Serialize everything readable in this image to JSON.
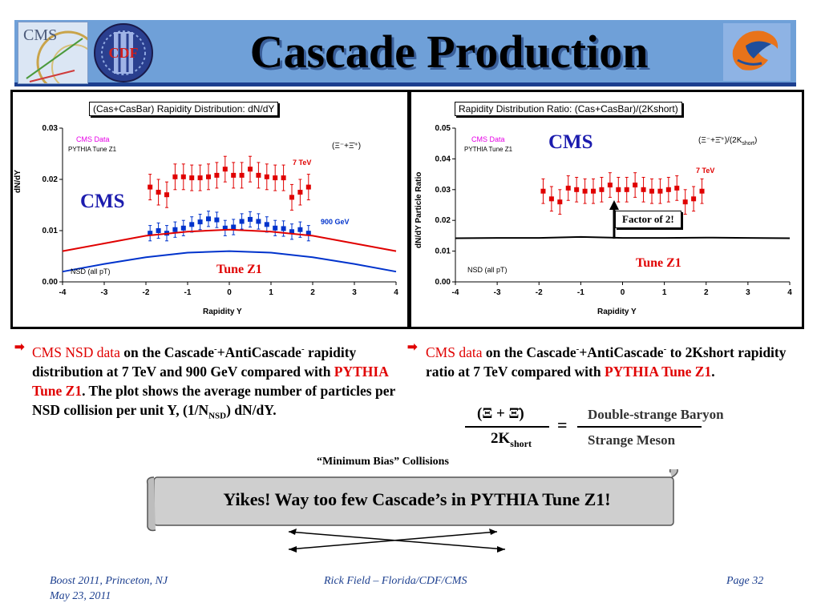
{
  "header": {
    "title": "Cascade Production",
    "logos": [
      "CMS",
      "CDF"
    ]
  },
  "left_plot": {
    "title": "(Cas+CasBar) Rapidity Distribution: dN/dY",
    "ylabel": "dN/dY",
    "xlabel": "Rapidity Y",
    "y_ticks": [
      "0.03",
      "0.02",
      "0.01",
      "0.00"
    ],
    "x_ticks": [
      "-4",
      "-3",
      "-2",
      "-1",
      "0",
      "1",
      "2",
      "3",
      "4"
    ],
    "legend_cms_data": "CMS Data",
    "legend_pythia": "PYTHIA Tune Z1",
    "formula": "(Ξ⁻+Ξ̄⁺)",
    "cms_label": "CMS",
    "label_7tev": "7 TeV",
    "label_900gev": "900 GeV",
    "tune_label": "Tune Z1",
    "nsd_label": "NSD (all pT)"
  },
  "right_plot": {
    "title": "Rapidity Distribution Ratio: (Cas+CasBar)/(2Kshort)",
    "ylabel": "dN/dY Particle Ratio",
    "xlabel": "Rapidity Y",
    "y_ticks": [
      "0.05",
      "0.04",
      "0.03",
      "0.02",
      "0.01",
      "0.00"
    ],
    "x_ticks": [
      "-4",
      "-3",
      "-2",
      "-1",
      "0",
      "1",
      "2",
      "3",
      "4"
    ],
    "legend_cms_data": "CMS Data",
    "legend_pythia": "PYTHIA Tune Z1",
    "formula_main": "(Ξ⁻+Ξ̄⁺)/(2K",
    "formula_sub": "short",
    "formula_end": ")",
    "cms_label": "CMS",
    "label_7tev": "7 TeV",
    "factor_label": "Factor of 2!",
    "tune_label": "Tune Z1",
    "nsd_label": "NSD (all pT)"
  },
  "chart_data": [
    {
      "type": "scatter",
      "title": "(Cas+CasBar) Rapidity Distribution: dN/dY",
      "xlabel": "Rapidity Y",
      "ylabel": "dN/dY",
      "xlim": [
        -4,
        4
      ],
      "ylim": [
        0,
        0.03
      ],
      "series": [
        {
          "name": "7 TeV",
          "color": "#e00000",
          "x": [
            -1.9,
            -1.7,
            -1.5,
            -1.3,
            -1.1,
            -0.9,
            -0.7,
            -0.5,
            -0.3,
            -0.1,
            0.1,
            0.3,
            0.5,
            0.7,
            0.9,
            1.1,
            1.3,
            1.5,
            1.7,
            1.9
          ],
          "y": [
            0.0185,
            0.0175,
            0.017,
            0.0205,
            0.0205,
            0.0203,
            0.0203,
            0.0205,
            0.0208,
            0.022,
            0.0208,
            0.0208,
            0.022,
            0.0208,
            0.0205,
            0.0203,
            0.0203,
            0.0165,
            0.0175,
            0.0185
          ],
          "err": [
            0.0025,
            0.0025,
            0.0025,
            0.0025,
            0.0025,
            0.0025,
            0.0025,
            0.0025,
            0.0025,
            0.0025,
            0.0025,
            0.0025,
            0.0025,
            0.0025,
            0.0025,
            0.0025,
            0.0025,
            0.0025,
            0.0025,
            0.0025
          ]
        },
        {
          "name": "900 GeV",
          "color": "#0033cc",
          "x": [
            -1.9,
            -1.7,
            -1.5,
            -1.3,
            -1.1,
            -0.9,
            -0.7,
            -0.5,
            -0.3,
            -0.1,
            0.1,
            0.3,
            0.5,
            0.7,
            0.9,
            1.1,
            1.3,
            1.5,
            1.7,
            1.9
          ],
          "y": [
            0.0095,
            0.01,
            0.0095,
            0.0102,
            0.0105,
            0.0112,
            0.0117,
            0.0123,
            0.0121,
            0.0105,
            0.0107,
            0.0118,
            0.0122,
            0.0118,
            0.0112,
            0.0105,
            0.0104,
            0.0098,
            0.0102,
            0.0095
          ],
          "err": [
            0.0015,
            0.0015,
            0.0015,
            0.0015,
            0.0015,
            0.0015,
            0.0015,
            0.0015,
            0.0015,
            0.0015,
            0.0015,
            0.0015,
            0.0015,
            0.0015,
            0.0015,
            0.0015,
            0.0015,
            0.0015,
            0.0015,
            0.0015
          ]
        },
        {
          "name": "Tune Z1 7 TeV",
          "color": "#e00000",
          "line": true,
          "x": [
            -4,
            -3,
            -2,
            -1,
            0,
            1,
            2,
            3,
            4
          ],
          "y": [
            0.006,
            0.0075,
            0.009,
            0.0098,
            0.0102,
            0.0098,
            0.009,
            0.0075,
            0.006
          ]
        },
        {
          "name": "Tune Z1 900 GeV",
          "color": "#0033cc",
          "line": true,
          "x": [
            -4,
            -3,
            -2,
            -1,
            0,
            1,
            2,
            3,
            4
          ],
          "y": [
            0.002,
            0.0035,
            0.0048,
            0.0057,
            0.006,
            0.0057,
            0.0048,
            0.0035,
            0.002
          ]
        }
      ]
    },
    {
      "type": "scatter",
      "title": "Rapidity Distribution Ratio: (Cas+CasBar)/(2Kshort)",
      "xlabel": "Rapidity Y",
      "ylabel": "dN/dY Particle Ratio",
      "xlim": [
        -4,
        4
      ],
      "ylim": [
        0,
        0.05
      ],
      "series": [
        {
          "name": "7 TeV",
          "color": "#e00000",
          "x": [
            -1.9,
            -1.7,
            -1.5,
            -1.3,
            -1.1,
            -0.9,
            -0.7,
            -0.5,
            -0.3,
            -0.1,
            0.1,
            0.3,
            0.5,
            0.7,
            0.9,
            1.1,
            1.3,
            1.5,
            1.7,
            1.9
          ],
          "y": [
            0.0295,
            0.027,
            0.026,
            0.0305,
            0.03,
            0.0295,
            0.0295,
            0.03,
            0.0315,
            0.03,
            0.03,
            0.0315,
            0.03,
            0.0295,
            0.0295,
            0.03,
            0.0305,
            0.026,
            0.027,
            0.0295
          ],
          "err": [
            0.004,
            0.004,
            0.004,
            0.004,
            0.004,
            0.004,
            0.004,
            0.004,
            0.004,
            0.004,
            0.004,
            0.004,
            0.004,
            0.004,
            0.004,
            0.004,
            0.004,
            0.004,
            0.004,
            0.004
          ]
        },
        {
          "name": "Tune Z1",
          "color": "#000000",
          "line": true,
          "x": [
            -4,
            -3,
            -2,
            -1,
            0,
            1,
            2,
            3,
            4
          ],
          "y": [
            0.0142,
            0.0143,
            0.0143,
            0.0146,
            0.0143,
            0.0143,
            0.0144,
            0.0143,
            0.0142
          ]
        }
      ]
    }
  ],
  "bullets": {
    "left": {
      "part1": "CMS NSD data",
      "part2": " on the Cascade",
      "sup1": "-",
      "part3": "+AntiCascade",
      "sup2": "-",
      "part4": " rapidity distribution at 7 TeV and 900 GeV compared with ",
      "part5": "PYTHIA Tune Z1",
      "part6": ".  The plot shows the average number of particles per NSD collision per unit Y, (1/N",
      "sub1": "NSD",
      "part7": ") dN/dY."
    },
    "right": {
      "part1": "CMS data",
      "part2": " on the Cascade",
      "sup1": "-",
      "part3": "+AntiCascade",
      "sup2": "-",
      "part4": " to 2Kshort rapidity ratio at 7 TeV compared with ",
      "part5": "PYTHIA Tune Z1",
      "part6": "."
    }
  },
  "formula": {
    "numerator": "(Ξ + Ξ̄)",
    "denominator_main": "2K",
    "denominator_sub": "short",
    "equals": "=",
    "rhs_top": "Double-strange Baryon",
    "rhs_bottom": "Strange Meson"
  },
  "minimum_bias": "“Minimum Bias” Collisions",
  "scroll_text": "Yikes!  Way too few Cascade’s in PYTHIA Tune Z1!",
  "footer": {
    "left_line1": "Boost 2011, Princeton, NJ",
    "left_line2": "May 23, 2011",
    "center": "Rick Field – Florida/CDF/CMS",
    "right": "Page 32"
  }
}
